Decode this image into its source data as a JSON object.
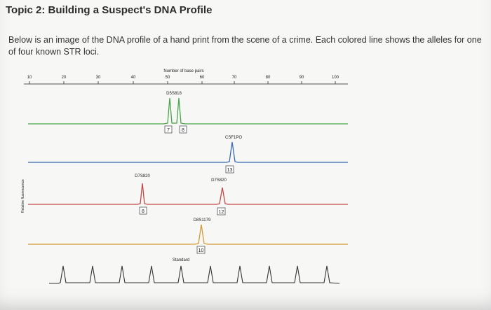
{
  "page": {
    "title": "Topic 2: Building a Suspect's DNA Profile",
    "description": "Below is an image of the DNA profile of a hand print from the scene of a crime. Each colored line shows the alleles for one of four known STR loci."
  },
  "figure": {
    "axis_title": "Number of base pairs",
    "y_label": "Relative fluorescence",
    "ticks": [
      "10",
      "20",
      "30",
      "40",
      "50",
      "60",
      "70",
      "80",
      "90",
      "100"
    ],
    "loci": [
      {
        "name": "D5S818",
        "color": "#4aa24a",
        "alleles": [
          "7",
          "8"
        ]
      },
      {
        "name": "CSF1PO",
        "color": "#3a68b0",
        "alleles": [
          "13"
        ]
      },
      {
        "name": "D7S820",
        "color": "#c24848",
        "alleles": [
          "8"
        ]
      },
      {
        "name": "D7S820",
        "color": "#c24848",
        "alleles": [
          "12"
        ]
      },
      {
        "name": "D8S1179",
        "color": "#d59a38",
        "alleles": [
          "10"
        ]
      }
    ],
    "standard_label": "Standard"
  }
}
